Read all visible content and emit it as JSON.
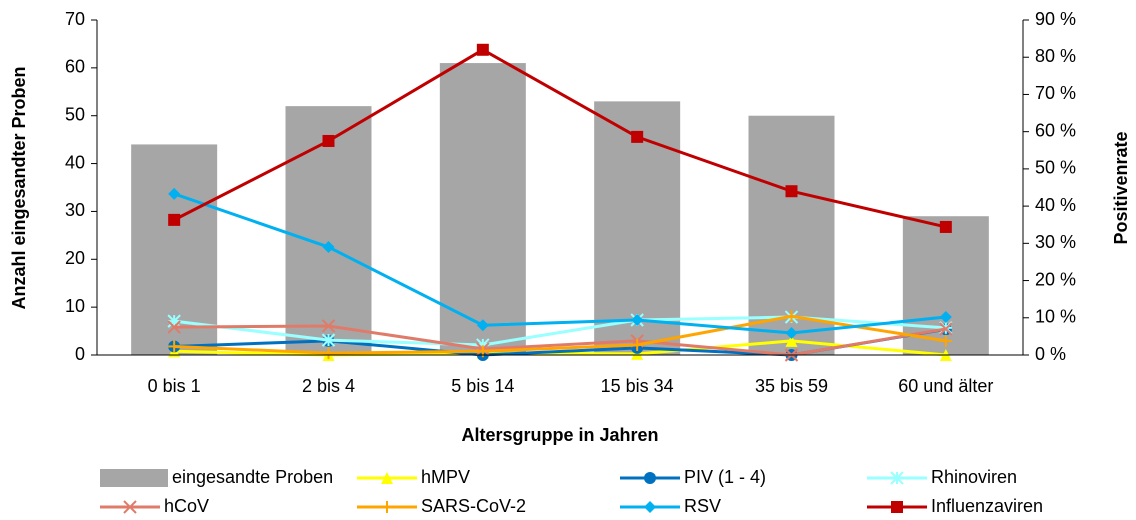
{
  "chart_data": {
    "type": "combo",
    "xlabel": "Altersgruppe in Jahren",
    "ylabel": "Anzahl eingesandter Proben",
    "y2label": "Positivenrate",
    "categories": [
      "0 bis 1",
      "2 bis 4",
      "5 bis 14",
      "15 bis 34",
      "35 bis 59",
      "60 und älter"
    ],
    "ylim": [
      0,
      70
    ],
    "yticks": [
      0,
      10,
      20,
      30,
      40,
      50,
      60,
      70
    ],
    "y2lim": [
      0,
      90
    ],
    "y2ticks": [
      {
        "value": 0,
        "label": "0 %"
      },
      {
        "value": 10,
        "label": "10 %"
      },
      {
        "value": 20,
        "label": "20 %"
      },
      {
        "value": 30,
        "label": "30 %"
      },
      {
        "value": 40,
        "label": "40 %"
      },
      {
        "value": 50,
        "label": "50 %"
      },
      {
        "value": 60,
        "label": "60 %"
      },
      {
        "value": 70,
        "label": "70 %"
      },
      {
        "value": 80,
        "label": "80 %"
      },
      {
        "value": 90,
        "label": "90 %"
      }
    ],
    "legend": "bottom",
    "series": [
      {
        "name": "eingesandte Proben",
        "type": "bar",
        "color": "#a6a6a6",
        "values": [
          44,
          52,
          61,
          53,
          50,
          29
        ]
      },
      {
        "name": "hMPV",
        "type": "line",
        "axis": "y2",
        "marker": "triangle",
        "color": "#ffff00",
        "values": [
          1,
          0,
          0.5,
          0.3,
          3.8,
          0
        ]
      },
      {
        "name": "PIV (1 - 4)",
        "type": "line",
        "axis": "y2",
        "marker": "circle",
        "color": "#0070c0",
        "values": [
          2.3,
          3.8,
          0,
          1.9,
          0,
          6.9
        ]
      },
      {
        "name": "Rhinoviren",
        "type": "line",
        "axis": "y2",
        "marker": "asterisk",
        "color": "#99ffff",
        "values": [
          9.1,
          4,
          2.7,
          9.4,
          10.2,
          7.3
        ]
      },
      {
        "name": "hCoV",
        "type": "line",
        "axis": "y2",
        "marker": "x",
        "color": "#e07b6a",
        "values": [
          7.5,
          7.8,
          1.6,
          3.8,
          0,
          7
        ]
      },
      {
        "name": "SARS-CoV-2",
        "type": "line",
        "axis": "y2",
        "marker": "plus",
        "color": "#ffa500",
        "values": [
          2.3,
          0.5,
          1,
          2.7,
          10.4,
          3.8
        ]
      },
      {
        "name": "RSV",
        "type": "line",
        "axis": "y2",
        "marker": "diamond",
        "color": "#00b0f0",
        "values": [
          43.3,
          29,
          8,
          9.4,
          5.9,
          10.2
        ]
      },
      {
        "name": "Influenzaviren",
        "type": "line",
        "axis": "y2",
        "marker": "square",
        "color": "#c00000",
        "values": [
          36.3,
          57.5,
          82,
          58.6,
          44,
          34.4
        ]
      }
    ]
  }
}
